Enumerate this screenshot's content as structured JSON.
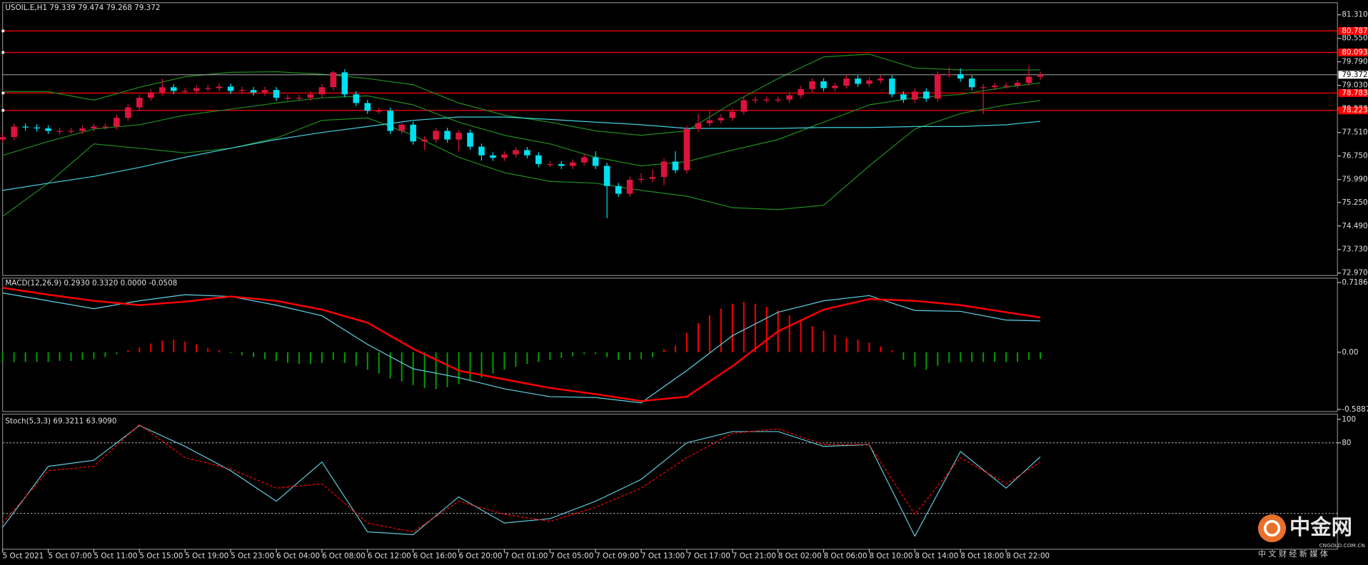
{
  "chart_data": [
    {
      "type": "candlestick",
      "title": "USOIL.E,H1  79.339 79.474 79.268 79.372",
      "xlim": [
        0,
        117.06
      ],
      "xticks": [
        {
          "value": 0,
          "label": "5 Oct 2021"
        },
        {
          "value": 4,
          "label": "5 Oct 07:00"
        },
        {
          "value": 8,
          "label": "5 Oct 11:00"
        },
        {
          "value": 12,
          "label": "5 Oct 15:00"
        },
        {
          "value": 16,
          "label": "5 Oct 19:00"
        },
        {
          "value": 20,
          "label": "5 Oct 23:00"
        },
        {
          "value": 24,
          "label": "6 Oct 04:00"
        },
        {
          "value": 28,
          "label": "6 Oct 08:00"
        },
        {
          "value": 32,
          "label": "6 Oct 12:00"
        },
        {
          "value": 36,
          "label": "6 Oct 16:00"
        },
        {
          "value": 40,
          "label": "6 Oct 20:00"
        },
        {
          "value": 44,
          "label": "7 Oct 01:00"
        },
        {
          "value": 48,
          "label": "7 Oct 05:00"
        },
        {
          "value": 52,
          "label": "7 Oct 09:00"
        },
        {
          "value": 56,
          "label": "7 Oct 13:00"
        },
        {
          "value": 60,
          "label": "7 Oct 17:00"
        },
        {
          "value": 64,
          "label": "7 Oct 21:00"
        },
        {
          "value": 68,
          "label": "8 Oct 02:00"
        },
        {
          "value": 72,
          "label": "8 Oct 06:00"
        },
        {
          "value": 76,
          "label": "8 Oct 10:00"
        },
        {
          "value": 80,
          "label": "8 Oct 14:00"
        },
        {
          "value": 84,
          "label": "8 Oct 18:00"
        },
        {
          "value": 88,
          "label": "8 Oct 22:00"
        }
      ],
      "ylim": [
        72.89,
        81.7
      ],
      "yticks": [
        {
          "value": 81.31,
          "label": "81.310"
        },
        {
          "value": 80.55,
          "label": "80.550"
        },
        {
          "value": 79.79,
          "label": "79.790"
        },
        {
          "value": 79.03,
          "label": "79.030"
        },
        {
          "value": 78.27,
          "label": "78.270"
        },
        {
          "value": 77.51,
          "label": "77.510"
        },
        {
          "value": 76.75,
          "label": "76.750"
        },
        {
          "value": 75.99,
          "label": "75.990"
        },
        {
          "value": 75.25,
          "label": "75.250"
        },
        {
          "value": 74.49,
          "label": "74.490"
        },
        {
          "value": 73.73,
          "label": "73.730"
        },
        {
          "value": 72.97,
          "label": "72.970"
        }
      ],
      "up_color": "#dc143c",
      "down_color": "#00e0f0",
      "x": [
        0,
        1,
        2,
        3,
        4,
        5,
        6,
        7,
        8,
        9,
        10,
        11,
        12,
        13,
        14,
        15,
        16,
        17,
        18,
        19,
        20,
        21,
        22,
        23,
        24,
        25,
        26,
        27,
        28,
        29,
        30,
        31,
        32,
        33,
        34,
        35,
        36,
        37,
        38,
        39,
        40,
        41,
        42,
        43,
        44,
        45,
        46,
        47,
        48,
        49,
        50,
        51,
        52,
        53,
        54,
        55,
        56,
        57,
        58,
        59,
        60,
        61,
        62,
        63,
        64,
        65,
        66,
        67,
        68,
        69,
        70,
        71,
        72,
        73,
        74,
        75,
        76,
        77,
        78,
        79,
        80,
        81,
        82,
        83,
        84,
        85,
        86,
        87,
        88,
        89,
        90,
        91
      ],
      "open": [
        77.28,
        77.36,
        77.7,
        77.67,
        77.64,
        77.56,
        77.56,
        77.56,
        77.64,
        77.7,
        77.7,
        77.98,
        78.32,
        78.63,
        78.8,
        78.97,
        78.85,
        78.85,
        78.94,
        78.94,
        78.99,
        78.85,
        78.88,
        78.8,
        78.88,
        78.63,
        78.63,
        78.63,
        78.74,
        78.97,
        79.45,
        78.74,
        78.46,
        78.21,
        78.21,
        77.56,
        77.76,
        77.22,
        77.28,
        77.56,
        77.28,
        77.5,
        77.05,
        76.77,
        76.69,
        76.8,
        76.94,
        76.77,
        76.49,
        76.49,
        76.43,
        76.54,
        76.71,
        76.43,
        75.78,
        75.53,
        75.98,
        76.01,
        76.07,
        76.57,
        76.29,
        77.62,
        77.81,
        77.9,
        77.98,
        78.18,
        78.55,
        78.57,
        78.57,
        78.57,
        78.71,
        78.91,
        79.16,
        78.94,
        79.02,
        79.25,
        79.08,
        79.19,
        79.25,
        78.74,
        78.57,
        78.83,
        78.6,
        79.39,
        79.39,
        79.25,
        78.97,
        78.97,
        79.02,
        79.02,
        79.11,
        79.31
      ],
      "high": [
        77.46,
        77.8,
        77.8,
        77.77,
        77.74,
        77.66,
        77.66,
        77.74,
        77.8,
        77.8,
        78.08,
        78.42,
        78.73,
        78.9,
        79.25,
        79.07,
        78.95,
        79.04,
        79.04,
        79.09,
        79.09,
        78.98,
        78.98,
        78.98,
        78.98,
        78.73,
        78.73,
        78.84,
        79.07,
        79.5,
        79.55,
        78.84,
        78.56,
        78.31,
        78.31,
        77.86,
        77.86,
        77.38,
        77.66,
        77.66,
        77.6,
        77.6,
        77.15,
        76.87,
        76.9,
        77.04,
        77.04,
        76.87,
        76.59,
        76.59,
        76.64,
        76.81,
        76.9,
        76.53,
        75.88,
        76.08,
        76.2,
        76.3,
        76.67,
        76.9,
        77.72,
        78.1,
        78.2,
        78.1,
        78.28,
        78.65,
        78.67,
        78.67,
        78.67,
        78.81,
        79.01,
        79.26,
        79.26,
        79.12,
        79.35,
        79.35,
        79.29,
        79.35,
        79.35,
        78.84,
        78.93,
        78.93,
        79.49,
        79.62,
        79.58,
        79.35,
        79.07,
        79.12,
        79.12,
        79.21,
        79.66,
        79.47
      ],
      "low": [
        77.18,
        77.26,
        77.57,
        77.54,
        77.46,
        77.46,
        77.46,
        77.46,
        77.54,
        77.6,
        77.6,
        77.88,
        78.22,
        78.53,
        78.7,
        78.75,
        78.75,
        78.75,
        78.84,
        78.84,
        78.75,
        78.75,
        78.7,
        78.7,
        78.53,
        78.53,
        78.53,
        78.53,
        78.64,
        78.87,
        78.64,
        78.36,
        78.11,
        78.11,
        77.46,
        77.46,
        77.12,
        76.95,
        77.18,
        77.18,
        76.9,
        76.95,
        76.6,
        76.59,
        76.59,
        76.7,
        76.67,
        76.39,
        76.39,
        76.33,
        76.33,
        76.44,
        76.33,
        74.74,
        75.43,
        75.43,
        75.88,
        75.91,
        75.8,
        76.19,
        76.19,
        77.52,
        77.71,
        77.8,
        77.88,
        78.08,
        78.45,
        78.47,
        78.47,
        78.47,
        78.61,
        78.81,
        78.84,
        78.84,
        78.92,
        78.98,
        78.98,
        79.09,
        78.64,
        78.47,
        78.47,
        78.5,
        78.5,
        79.29,
        79.15,
        78.87,
        78.1,
        78.87,
        78.92,
        78.92,
        79.01,
        79.21
      ],
      "close": [
        77.36,
        77.7,
        77.67,
        77.64,
        77.56,
        77.56,
        77.56,
        77.64,
        77.7,
        77.7,
        77.98,
        78.32,
        78.63,
        78.8,
        78.97,
        78.85,
        78.85,
        78.94,
        78.94,
        78.99,
        78.85,
        78.88,
        78.8,
        78.88,
        78.63,
        78.63,
        78.63,
        78.74,
        78.97,
        79.45,
        78.74,
        78.46,
        78.21,
        78.21,
        77.56,
        77.76,
        77.22,
        77.28,
        77.56,
        77.28,
        77.5,
        77.05,
        76.77,
        76.69,
        76.8,
        76.94,
        76.77,
        76.49,
        76.49,
        76.43,
        76.54,
        76.71,
        76.43,
        75.78,
        75.53,
        75.98,
        76.01,
        76.07,
        76.57,
        76.29,
        77.62,
        77.81,
        77.9,
        77.98,
        78.18,
        78.55,
        78.57,
        78.57,
        78.57,
        78.71,
        78.91,
        79.16,
        78.94,
        79.02,
        79.25,
        79.08,
        79.19,
        79.25,
        78.74,
        78.57,
        78.83,
        78.6,
        79.39,
        79.39,
        79.25,
        78.97,
        78.97,
        79.02,
        79.02,
        79.11,
        79.31,
        79.37
      ],
      "lines": [
        {
          "color": "#1e8c1e",
          "x": [
            0,
            4,
            8,
            12,
            16,
            20,
            24,
            28,
            32,
            36,
            40,
            44,
            48,
            52,
            56,
            60,
            64,
            68,
            72,
            76,
            80,
            84,
            88,
            91
          ],
          "values": [
            78.83,
            78.83,
            78.55,
            78.97,
            79.31,
            79.45,
            79.47,
            79.39,
            79.25,
            79.05,
            78.46,
            78.07,
            77.84,
            77.56,
            77.42,
            77.56,
            78.46,
            79.25,
            79.95,
            80.04,
            79.59,
            79.53,
            79.53,
            79.53
          ]
        },
        {
          "color": "#1e8c1e",
          "x": [
            0,
            4,
            8,
            12,
            16,
            20,
            24,
            28,
            32,
            36,
            40,
            44,
            48,
            52,
            56,
            60,
            64,
            68,
            72,
            76,
            80,
            84,
            88,
            91
          ],
          "values": [
            76.77,
            77.22,
            77.62,
            77.76,
            78.07,
            78.26,
            78.46,
            78.63,
            78.69,
            78.4,
            77.84,
            77.42,
            77.14,
            76.71,
            76.43,
            76.57,
            76.94,
            77.28,
            77.84,
            78.4,
            78.63,
            78.74,
            78.97,
            79.11
          ]
        },
        {
          "color": "#1e8c1e",
          "x": [
            0,
            4,
            8,
            12,
            16,
            20,
            24,
            28,
            32,
            36,
            40,
            44,
            48,
            52,
            56,
            60,
            64,
            68,
            72,
            76,
            80,
            84,
            88,
            91
          ],
          "values": [
            74.8,
            75.87,
            77.14,
            77.0,
            76.85,
            77.0,
            77.33,
            77.9,
            77.98,
            77.42,
            76.71,
            76.21,
            75.93,
            75.87,
            75.64,
            75.45,
            75.08,
            75.02,
            75.16,
            76.43,
            77.62,
            78.12,
            78.4,
            78.54
          ]
        },
        {
          "color": "#40d0e0",
          "x": [
            0,
            4,
            8,
            12,
            16,
            20,
            24,
            28,
            32,
            36,
            40,
            44,
            48,
            52,
            56,
            60,
            64,
            68,
            72,
            76,
            80,
            84,
            88,
            91
          ],
          "values": [
            75.64,
            75.87,
            76.09,
            76.38,
            76.71,
            77.0,
            77.28,
            77.51,
            77.7,
            77.9,
            78.01,
            78.01,
            77.93,
            77.84,
            77.76,
            77.64,
            77.64,
            77.64,
            77.67,
            77.67,
            77.7,
            77.7,
            77.76,
            77.87
          ]
        }
      ],
      "hlines": [
        {
          "value": 80.787,
          "color": "#ff0000"
        },
        {
          "value": 80.093,
          "color": "#ff0000"
        },
        {
          "value": 78.783,
          "color": "#ff0000"
        },
        {
          "value": 78.223,
          "color": "#ff0000"
        }
      ],
      "last_price": {
        "value": 79.372,
        "color": "#c0c0c0"
      }
    },
    {
      "type": "macd",
      "title": "MACD(12,26,9) 0.2930 0.3320 0.0000 -0.0508",
      "xlim": [
        0,
        117.06
      ],
      "ylim": [
        -0.611,
        0.764
      ],
      "yticks": [
        0.7186,
        {
          "value": 0,
          "label": "0.00"
        },
        -0.5887
      ],
      "x": [
        0,
        4,
        8,
        12,
        16,
        20,
        24,
        28,
        32,
        36,
        40,
        44,
        48,
        52,
        56,
        60,
        64,
        68,
        72,
        76,
        80,
        84,
        88,
        91
      ],
      "histogram": {
        "pos_color": "#ff0000",
        "neg_color": "#00a000",
        "values": [
          -0.1,
          -0.1,
          -0.1,
          -0.1,
          -0.1,
          -0.09,
          -0.09,
          -0.08,
          -0.07,
          -0.05,
          -0.02,
          0.02,
          0.05,
          0.09,
          0.12,
          0.13,
          0.11,
          0.08,
          0.04,
          0.02,
          -0.01,
          -0.03,
          -0.05,
          -0.07,
          -0.09,
          -0.11,
          -0.12,
          -0.12,
          -0.11,
          -0.08,
          -0.11,
          -0.14,
          -0.18,
          -0.22,
          -0.27,
          -0.3,
          -0.34,
          -0.37,
          -0.38,
          -0.36,
          -0.33,
          -0.3,
          -0.26,
          -0.22,
          -0.18,
          -0.15,
          -0.12,
          -0.1,
          -0.08,
          -0.06,
          -0.04,
          -0.02,
          -0.02,
          -0.05,
          -0.08,
          -0.08,
          -0.07,
          -0.05,
          0.03,
          0.07,
          0.2,
          0.3,
          0.38,
          0.45,
          0.5,
          0.52,
          0.5,
          0.47,
          0.43,
          0.38,
          0.33,
          0.27,
          0.22,
          0.18,
          0.15,
          0.13,
          0.1,
          0.06,
          0.02,
          -0.08,
          -0.15,
          -0.18,
          -0.14,
          -0.11,
          -0.1,
          -0.1,
          -0.1,
          -0.1,
          -0.1,
          -0.1,
          -0.08,
          -0.07
        ]
      },
      "lines": [
        {
          "color": "#5fd3e6",
          "width": 1,
          "values": [
            0.611,
            0.53,
            0.449,
            0.53,
            0.593,
            0.575,
            0.485,
            0.377,
            0.081,
            -0.171,
            -0.261,
            -0.377,
            -0.458,
            -0.467,
            -0.521,
            -0.189,
            0.171,
            0.413,
            0.53,
            0.584,
            0.431,
            0.422,
            0.332,
            0.323
          ]
        },
        {
          "color": "#ff0000",
          "width": 2,
          "values": [
            0.665,
            0.593,
            0.53,
            0.485,
            0.521,
            0.575,
            0.53,
            0.44,
            0.305,
            0.036,
            -0.189,
            -0.279,
            -0.368,
            -0.431,
            -0.503,
            -0.458,
            -0.144,
            0.216,
            0.44,
            0.548,
            0.53,
            0.485,
            0.413,
            0.359
          ]
        }
      ]
    },
    {
      "type": "stochastic",
      "title": "Stoch(5,3,3) 69.3211 63.9090",
      "xlim": [
        0,
        117.06
      ],
      "ylim": [
        -10.4,
        104.4
      ],
      "yticks": [
        100,
        80
      ],
      "levels": [
        80,
        20
      ],
      "x": [
        0,
        4,
        8,
        12,
        16,
        20,
        24,
        28,
        32,
        36,
        40,
        44,
        48,
        52,
        56,
        60,
        64,
        68,
        72,
        76,
        80,
        84,
        88,
        91
      ],
      "lines": [
        {
          "color": "#5fc6d6",
          "dash": false,
          "values": [
            8.1,
            60.0,
            65.2,
            94.8,
            77.0,
            56.3,
            30.4,
            63.7,
            4.4,
            2.0,
            34.1,
            11.9,
            15.6,
            30.4,
            48.9,
            80.0,
            89.6,
            89.6,
            77.0,
            78.5,
            0.7,
            72.6,
            41.5,
            68.1
          ]
        },
        {
          "color": "#ff0000",
          "dash": true,
          "values": [
            11.9,
            56.3,
            60.0,
            95.6,
            67.4,
            57.8,
            41.5,
            45.2,
            11.9,
            4.4,
            30.4,
            19.3,
            13.3,
            25.2,
            41.5,
            67.4,
            88.1,
            91.9,
            78.5,
            78.5,
            19.3,
            67.4,
            45.2,
            63.7
          ]
        }
      ]
    }
  ],
  "watermark": {
    "name": "中金网",
    "site": "CNGOLD.COM.CN",
    "slogan": "中 文 财 经 新 媒 体"
  }
}
